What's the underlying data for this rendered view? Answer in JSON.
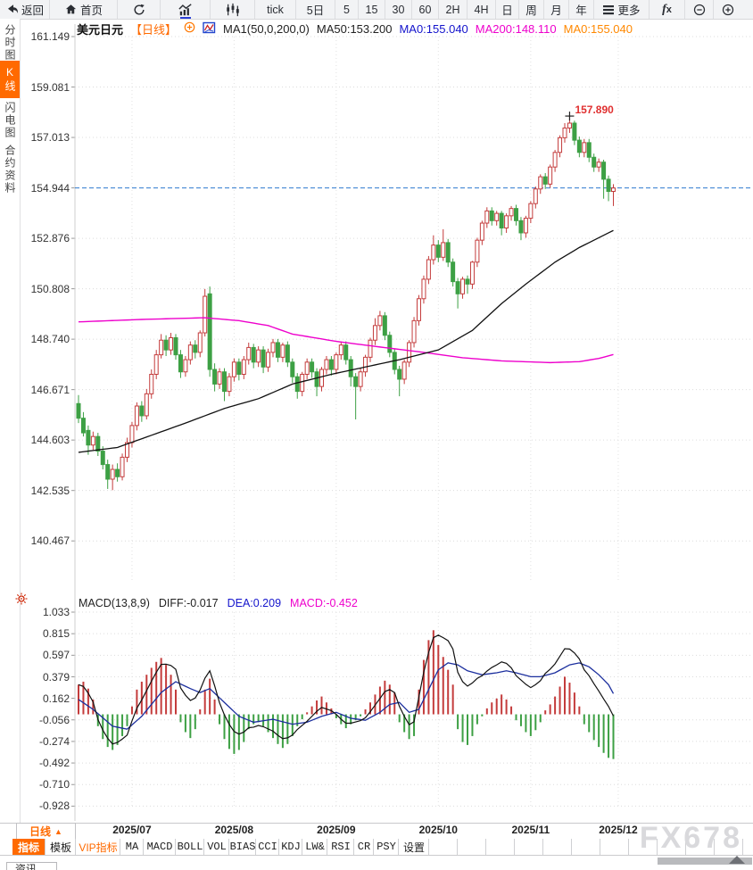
{
  "topbar": {
    "back": "返回",
    "home": "首页",
    "tick": "tick",
    "d5": "5日",
    "m5": "5",
    "m15": "15",
    "m30": "30",
    "m60": "60",
    "h2": "2H",
    "h4": "4H",
    "day": "日",
    "week": "周",
    "month": "月",
    "year": "年",
    "more": "更多",
    "fx": "fx"
  },
  "sidebar": {
    "tabs": [
      {
        "label": "分时图",
        "active": false
      },
      {
        "label": "K线图",
        "active": true
      },
      {
        "label": "闪电图",
        "active": false
      },
      {
        "label": "合约资料",
        "active": false
      }
    ]
  },
  "price_header": {
    "symbol": "美元日元",
    "period": "【日线】",
    "ma_title": "MA1(50,0,200,0)",
    "legend": [
      {
        "label": "MA50:153.200",
        "color": "#222222"
      },
      {
        "label": "MA0:155.040",
        "color": "#1414cc"
      },
      {
        "label": "MA200:148.110",
        "color": "#ee00cc"
      },
      {
        "label": "MA0:155.040",
        "color": "#ff8800"
      }
    ]
  },
  "macd_header": {
    "title": "MACD(13,8,9)",
    "diff": {
      "label": "DIFF:-0.017",
      "color": "#222222"
    },
    "dea": {
      "label": "DEA:0.209",
      "color": "#1414cc"
    },
    "macd": {
      "label": "MACD:-0.452",
      "color": "#ee00cc"
    }
  },
  "xaxis": {
    "selector": "日线",
    "selector_arrow": "▲",
    "months": [
      "2025/07",
      "2025/08",
      "2025/09",
      "2025/10",
      "2025/11",
      "2025/12"
    ]
  },
  "indicator_bar": {
    "items": [
      {
        "label": "指标",
        "style": "active"
      },
      {
        "label": "模板",
        "style": ""
      },
      {
        "label": "VIP指标",
        "style": "vip"
      },
      {
        "label": "MA",
        "style": "mono"
      },
      {
        "label": "MACD",
        "style": "mono"
      },
      {
        "label": "BOLL",
        "style": "mono"
      },
      {
        "label": "VOL",
        "style": "mono"
      },
      {
        "label": "BIAS",
        "style": "mono"
      },
      {
        "label": "CCI",
        "style": "mono"
      },
      {
        "label": "KDJ",
        "style": "mono"
      },
      {
        "label": "LW&",
        "style": "mono"
      },
      {
        "label": "RSI",
        "style": "mono"
      },
      {
        "label": "CR",
        "style": "mono"
      },
      {
        "label": "PSY",
        "style": "mono"
      },
      {
        "label": "设置",
        "style": ""
      }
    ]
  },
  "news_tab": "资讯",
  "watermark": "FX678",
  "accent_color": "#ff6a00",
  "chart_data": [
    {
      "type": "candlestick",
      "title": "美元日元 日线",
      "y_ticks": [
        "161.149",
        "159.081",
        "157.013",
        "154.944",
        "152.876",
        "150.808",
        "148.740",
        "146.671",
        "144.603",
        "142.535",
        "140.467"
      ],
      "y_max": 161.149,
      "y_step": 2.0681,
      "current_price": 154.944,
      "annotation": {
        "text": "157.890",
        "price": 157.89,
        "index": 101
      },
      "month_start_indices": [
        11,
        32,
        53,
        74,
        93,
        111
      ],
      "up_color": "#c43c3c",
      "down_color": "#3da044",
      "current_line_color": "#2e7bd0",
      "candles": [
        [
          146.1,
          146.45,
          145.3,
          145.5
        ],
        [
          145.5,
          145.75,
          144.75,
          144.9
        ],
        [
          145.0,
          145.2,
          144.0,
          144.4
        ],
        [
          144.4,
          144.95,
          144.2,
          144.75
        ],
        [
          144.75,
          144.9,
          143.95,
          144.15
        ],
        [
          144.15,
          144.35,
          143.4,
          143.6
        ],
        [
          143.6,
          143.8,
          142.6,
          143.0
        ],
        [
          143.0,
          143.6,
          142.55,
          143.4
        ],
        [
          143.4,
          143.65,
          142.9,
          143.1
        ],
        [
          143.1,
          144.05,
          142.95,
          143.9
        ],
        [
          143.9,
          144.7,
          143.7,
          144.5
        ],
        [
          144.5,
          145.35,
          144.3,
          145.2
        ],
        [
          145.2,
          146.15,
          145.0,
          146.0
        ],
        [
          146.0,
          146.2,
          145.35,
          145.6
        ],
        [
          145.6,
          146.7,
          145.45,
          146.5
        ],
        [
          146.5,
          147.5,
          146.3,
          147.3
        ],
        [
          147.3,
          148.3,
          147.1,
          148.1
        ],
        [
          148.1,
          148.95,
          147.95,
          148.7
        ],
        [
          148.7,
          148.9,
          148.05,
          148.3
        ],
        [
          148.3,
          149.0,
          148.1,
          148.8
        ],
        [
          148.8,
          148.95,
          147.9,
          148.1
        ],
        [
          148.1,
          148.3,
          147.15,
          147.4
        ],
        [
          147.4,
          148.05,
          147.2,
          147.9
        ],
        [
          147.9,
          148.65,
          147.7,
          148.5
        ],
        [
          148.5,
          148.7,
          147.95,
          148.2
        ],
        [
          148.2,
          149.1,
          148.0,
          149.0
        ],
        [
          149.0,
          150.8,
          148.85,
          150.5
        ],
        [
          150.6,
          150.9,
          147.2,
          147.5
        ],
        [
          147.5,
          147.75,
          146.6,
          146.9
        ],
        [
          146.9,
          147.55,
          146.7,
          147.4
        ],
        [
          147.4,
          147.55,
          146.2,
          146.6
        ],
        [
          146.6,
          147.35,
          146.4,
          147.2
        ],
        [
          147.2,
          147.95,
          147.0,
          147.8
        ],
        [
          147.8,
          147.95,
          147.05,
          147.3
        ],
        [
          147.3,
          148.05,
          147.1,
          147.9
        ],
        [
          147.9,
          148.6,
          147.7,
          148.4
        ],
        [
          148.4,
          148.55,
          147.55,
          147.8
        ],
        [
          147.8,
          148.45,
          147.6,
          148.3
        ],
        [
          148.3,
          148.45,
          147.35,
          147.6
        ],
        [
          147.6,
          148.35,
          147.4,
          148.2
        ],
        [
          148.2,
          148.75,
          148.0,
          148.6
        ],
        [
          148.6,
          148.75,
          147.8,
          148.0
        ],
        [
          148.0,
          148.6,
          147.8,
          148.5
        ],
        [
          148.5,
          148.65,
          147.6,
          147.8
        ],
        [
          147.8,
          147.95,
          146.95,
          147.2
        ],
        [
          147.2,
          147.35,
          146.3,
          146.6
        ],
        [
          146.6,
          147.4,
          146.4,
          147.3
        ],
        [
          147.3,
          147.95,
          147.1,
          147.8
        ],
        [
          147.8,
          147.95,
          147.15,
          147.4
        ],
        [
          147.4,
          147.55,
          146.4,
          146.8
        ],
        [
          146.8,
          147.6,
          146.6,
          147.5
        ],
        [
          147.5,
          148.05,
          147.3,
          147.9
        ],
        [
          147.9,
          148.05,
          147.25,
          147.5
        ],
        [
          147.5,
          148.2,
          147.3,
          148.1
        ],
        [
          148.1,
          148.65,
          147.9,
          148.5
        ],
        [
          148.5,
          148.65,
          147.7,
          147.9
        ],
        [
          147.9,
          148.05,
          146.8,
          147.2
        ],
        [
          147.2,
          147.35,
          145.45,
          146.8
        ],
        [
          146.8,
          147.55,
          146.6,
          147.4
        ],
        [
          147.4,
          148.1,
          147.2,
          148.0
        ],
        [
          148.0,
          148.8,
          147.8,
          148.7
        ],
        [
          148.7,
          149.6,
          148.5,
          149.3
        ],
        [
          149.3,
          149.9,
          149.1,
          149.7
        ],
        [
          149.7,
          149.85,
          148.7,
          148.9
        ],
        [
          148.9,
          149.05,
          148.0,
          148.2
        ],
        [
          148.2,
          148.35,
          147.3,
          147.5
        ],
        [
          147.5,
          147.65,
          146.4,
          147.1
        ],
        [
          147.1,
          147.9,
          146.9,
          147.8
        ],
        [
          147.8,
          148.7,
          147.6,
          148.6
        ],
        [
          148.6,
          149.65,
          148.4,
          149.5
        ],
        [
          149.5,
          150.55,
          149.3,
          150.4
        ],
        [
          150.4,
          151.35,
          150.2,
          151.2
        ],
        [
          151.2,
          152.15,
          151.0,
          152.0
        ],
        [
          152.0,
          153.0,
          151.8,
          152.6
        ],
        [
          152.6,
          152.8,
          151.9,
          152.1
        ],
        [
          152.1,
          153.25,
          151.95,
          152.7
        ],
        [
          152.7,
          152.85,
          151.7,
          151.9
        ],
        [
          151.9,
          152.05,
          150.9,
          151.1
        ],
        [
          151.1,
          151.25,
          150.0,
          150.6
        ],
        [
          150.6,
          151.3,
          150.4,
          151.2
        ],
        [
          151.2,
          151.35,
          150.6,
          151.0
        ],
        [
          151.0,
          151.95,
          150.8,
          151.9
        ],
        [
          151.9,
          152.9,
          151.7,
          152.8
        ],
        [
          152.8,
          153.6,
          152.6,
          153.5
        ],
        [
          153.5,
          154.15,
          153.3,
          154.0
        ],
        [
          154.0,
          154.15,
          153.4,
          153.6
        ],
        [
          153.6,
          154.0,
          153.4,
          153.9
        ],
        [
          153.9,
          154.0,
          153.0,
          153.3
        ],
        [
          153.3,
          153.9,
          153.1,
          153.8
        ],
        [
          153.8,
          154.2,
          153.6,
          154.1
        ],
        [
          154.1,
          154.25,
          153.4,
          153.6
        ],
        [
          153.6,
          153.75,
          152.8,
          153.1
        ],
        [
          153.1,
          153.8,
          152.9,
          153.7
        ],
        [
          153.7,
          154.4,
          153.5,
          154.3
        ],
        [
          154.3,
          155.0,
          154.1,
          154.9
        ],
        [
          154.9,
          155.5,
          154.7,
          155.4
        ],
        [
          155.4,
          155.55,
          154.9,
          155.1
        ],
        [
          155.1,
          155.9,
          154.95,
          155.8
        ],
        [
          155.8,
          156.5,
          155.6,
          156.4
        ],
        [
          156.4,
          157.1,
          156.2,
          157.0
        ],
        [
          157.0,
          157.6,
          156.8,
          157.4
        ],
        [
          157.4,
          157.89,
          157.2,
          157.6
        ],
        [
          157.6,
          157.7,
          156.7,
          156.9
        ],
        [
          156.9,
          157.05,
          156.2,
          156.4
        ],
        [
          156.4,
          156.95,
          156.2,
          156.8
        ],
        [
          156.8,
          156.95,
          156.0,
          156.2
        ],
        [
          156.2,
          156.35,
          155.6,
          155.8
        ],
        [
          155.8,
          156.15,
          155.6,
          156.0
        ],
        [
          156.0,
          156.1,
          154.5,
          155.3
        ],
        [
          155.3,
          155.45,
          154.4,
          154.8
        ],
        [
          154.8,
          155.1,
          154.2,
          154.94
        ]
      ],
      "ma50": {
        "color": "#111111",
        "last": 153.2,
        "anchors": [
          [
            0,
            144.1
          ],
          [
            8,
            144.3
          ],
          [
            15,
            144.8
          ],
          [
            22,
            145.3
          ],
          [
            30,
            145.9
          ],
          [
            37,
            146.3
          ],
          [
            44,
            146.9
          ],
          [
            52,
            147.3
          ],
          [
            59,
            147.6
          ],
          [
            66,
            147.9
          ],
          [
            74,
            148.3
          ],
          [
            81,
            149.1
          ],
          [
            87,
            150.2
          ],
          [
            92,
            151.0
          ],
          [
            98,
            151.9
          ],
          [
            103,
            152.5
          ],
          [
            110,
            153.2
          ]
        ]
      },
      "ma200": {
        "color": "#ee00cc",
        "last": 148.11,
        "anchors": [
          [
            0,
            149.45
          ],
          [
            13,
            149.55
          ],
          [
            26,
            149.62
          ],
          [
            33,
            149.5
          ],
          [
            39,
            149.3
          ],
          [
            44,
            148.95
          ],
          [
            53,
            148.65
          ],
          [
            62,
            148.42
          ],
          [
            71,
            148.2
          ],
          [
            79,
            147.98
          ],
          [
            87,
            147.85
          ],
          [
            97,
            147.78
          ],
          [
            103,
            147.82
          ],
          [
            107,
            147.95
          ],
          [
            110,
            148.11
          ]
        ]
      }
    },
    {
      "type": "macd",
      "params": "(13,8,9)",
      "y_ticks": [
        "1.033",
        "0.815",
        "0.597",
        "0.379",
        "0.162",
        "-0.056",
        "-0.274",
        "-0.492",
        "-0.710",
        "-0.928"
      ],
      "diff_last": -0.017,
      "dea_last": 0.209,
      "hist_last": -0.452,
      "diff_rule": "diff[i] = dea[i] + hist[i]/2",
      "colors": {
        "diff": "#111111",
        "dea": "#1c2f9e",
        "pos": "#c43c3c",
        "neg": "#3da044"
      },
      "hist": [
        0.3,
        0.33,
        0.26,
        0.15,
        -0.12,
        -0.25,
        -0.33,
        -0.36,
        -0.31,
        -0.22,
        -0.12,
        0.08,
        0.25,
        0.33,
        0.4,
        0.47,
        0.53,
        0.57,
        0.5,
        0.4,
        0.25,
        -0.08,
        -0.18,
        -0.24,
        -0.15,
        0.05,
        0.25,
        0.36,
        0.15,
        -0.1,
        -0.25,
        -0.35,
        -0.4,
        -0.36,
        -0.28,
        -0.15,
        -0.1,
        -0.08,
        -0.12,
        -0.18,
        -0.24,
        -0.3,
        -0.34,
        -0.3,
        -0.22,
        -0.12,
        -0.05,
        0.02,
        0.08,
        0.14,
        0.18,
        0.12,
        0.06,
        -0.04,
        -0.1,
        -0.14,
        -0.1,
        -0.06,
        -0.02,
        0.05,
        0.12,
        0.2,
        0.28,
        0.34,
        0.3,
        0.22,
        -0.08,
        -0.18,
        -0.25,
        -0.22,
        0.25,
        0.55,
        0.75,
        0.85,
        0.7,
        0.58,
        0.45,
        0.3,
        -0.15,
        -0.28,
        -0.31,
        -0.22,
        -0.1,
        -0.02,
        0.06,
        0.12,
        0.16,
        0.2,
        0.15,
        0.08,
        -0.06,
        -0.12,
        -0.18,
        -0.22,
        -0.16,
        -0.08,
        0.04,
        0.1,
        0.18,
        0.28,
        0.38,
        0.32,
        0.22,
        0.08,
        -0.1,
        -0.18,
        -0.26,
        -0.33,
        -0.39,
        -0.44,
        -0.452
      ],
      "dea_anchors": [
        [
          0,
          0.15
        ],
        [
          3,
          0.05
        ],
        [
          7,
          -0.12
        ],
        [
          10,
          -0.15
        ],
        [
          13,
          -0.02
        ],
        [
          17,
          0.22
        ],
        [
          20,
          0.33
        ],
        [
          23,
          0.26
        ],
        [
          25,
          0.22
        ],
        [
          27,
          0.26
        ],
        [
          30,
          0.12
        ],
        [
          33,
          -0.02
        ],
        [
          36,
          -0.08
        ],
        [
          40,
          -0.05
        ],
        [
          44,
          -0.1
        ],
        [
          47,
          -0.08
        ],
        [
          50,
          -0.02
        ],
        [
          53,
          0.02
        ],
        [
          56,
          -0.04
        ],
        [
          59,
          -0.06
        ],
        [
          62,
          0.02
        ],
        [
          64,
          0.1
        ],
        [
          66,
          0.12
        ],
        [
          68,
          0.02
        ],
        [
          70,
          0.05
        ],
        [
          72,
          0.25
        ],
        [
          74,
          0.45
        ],
        [
          76,
          0.52
        ],
        [
          78,
          0.5
        ],
        [
          80,
          0.44
        ],
        [
          83,
          0.4
        ],
        [
          86,
          0.42
        ],
        [
          88,
          0.44
        ],
        [
          90,
          0.42
        ],
        [
          93,
          0.38
        ],
        [
          95,
          0.38
        ],
        [
          98,
          0.42
        ],
        [
          101,
          0.5
        ],
        [
          103,
          0.52
        ],
        [
          105,
          0.48
        ],
        [
          107,
          0.4
        ],
        [
          109,
          0.3
        ],
        [
          110,
          0.209
        ]
      ]
    }
  ]
}
